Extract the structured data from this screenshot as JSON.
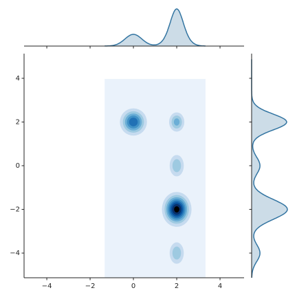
{
  "chart_data": {
    "type": "joint-kde",
    "xlim": [
      -5.05,
      5.11
    ],
    "ylim": [
      -5.13,
      5.13
    ],
    "xticks": [
      {
        "value": -4,
        "label": "−4"
      },
      {
        "value": -2,
        "label": "−2"
      },
      0,
      2,
      4
    ],
    "yticks": [
      {
        "value": -4,
        "label": "−4"
      },
      {
        "value": -2,
        "label": "−2"
      },
      0,
      2,
      4
    ],
    "support": {
      "x": [
        -1.33,
        3.33
      ],
      "y": [
        -5.13,
        3.97
      ]
    },
    "clusters": [
      {
        "x": 0,
        "y": 2,
        "sx": 0.3,
        "sy": 0.3,
        "weight": 3
      },
      {
        "x": 2,
        "y": 2,
        "sx": 0.2,
        "sy": 0.25,
        "weight": 1
      },
      {
        "x": 2,
        "y": 0,
        "sx": 0.2,
        "sy": 0.3,
        "weight": 1
      },
      {
        "x": 2,
        "y": -2,
        "sx": 0.3,
        "sy": 0.35,
        "weight": 5
      },
      {
        "x": 2,
        "y": -4,
        "sx": 0.2,
        "sy": 0.3,
        "weight": 1
      }
    ],
    "level_colors": [
      "#eaf2fb",
      "#c6dbef",
      "#9ecae1",
      "#6baed6",
      "#4292c6",
      "#2171b5",
      "#08519c",
      "#08306b",
      "#000000"
    ],
    "marginal_color": "#3274a1"
  }
}
